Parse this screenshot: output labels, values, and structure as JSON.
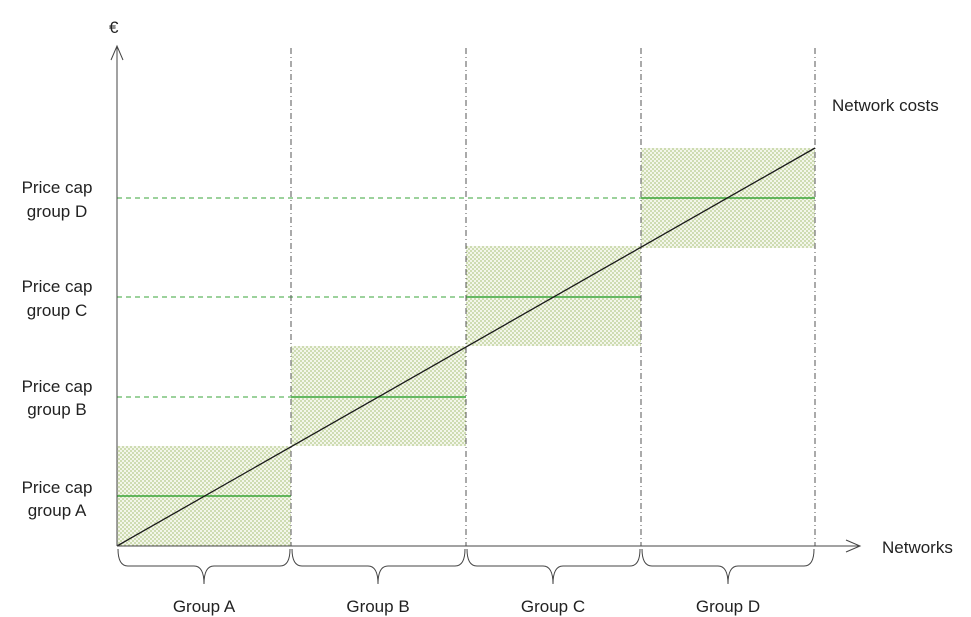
{
  "diagram": {
    "y_axis_label": "€",
    "x_axis_label": "Networks",
    "cost_line_label": "Network costs",
    "price_caps": [
      {
        "line1": "Price cap",
        "line2": "group A"
      },
      {
        "line1": "Price cap",
        "line2": "group B"
      },
      {
        "line1": "Price cap",
        "line2": "group C"
      },
      {
        "line1": "Price cap",
        "line2": "group D"
      }
    ],
    "groups": [
      "Group A",
      "Group B",
      "Group C",
      "Group D"
    ],
    "colors": {
      "axis": "#444444",
      "cost_line": "#1a1a1a",
      "cap_line": "#3aa63a",
      "dashed_line": "#3aa63a",
      "band_dot": "#b3c98a",
      "divider": "#555555"
    }
  }
}
